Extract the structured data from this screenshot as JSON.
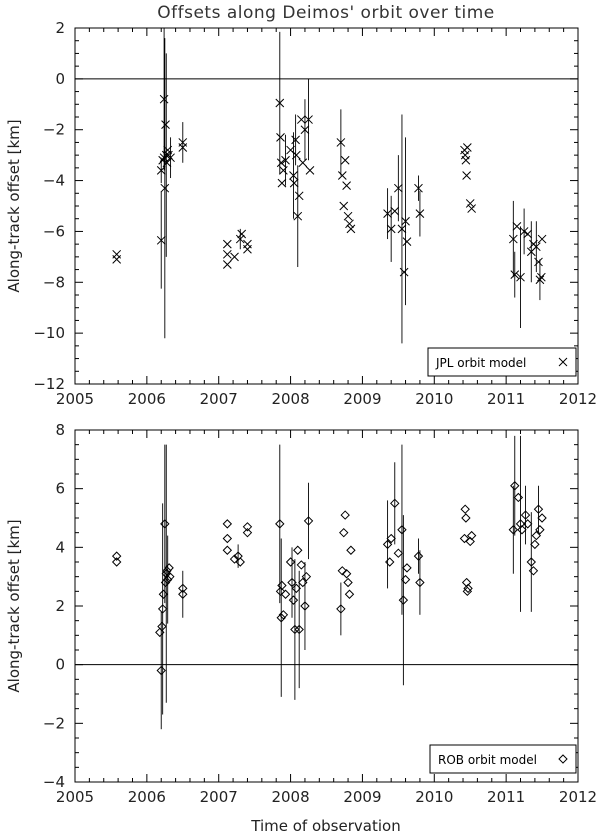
{
  "figure": {
    "title": "Offsets along Deimos' orbit over time",
    "xlabel": "Time of observation"
  },
  "chart_data": [
    {
      "type": "scatter",
      "panel": "top",
      "title": "Offsets along Deimos' orbit over time",
      "xlabel": "",
      "ylabel": "Along-track offset [km]",
      "xlim": [
        2005,
        2012
      ],
      "ylim": [
        -12,
        2
      ],
      "xticks": [
        2005,
        2006,
        2007,
        2008,
        2009,
        2010,
        2011,
        2012
      ],
      "yticks": [
        -12,
        -10,
        -8,
        -6,
        -4,
        -2,
        0,
        2
      ],
      "marker": "x",
      "grid": false,
      "zero_line": true,
      "legend": {
        "label": "JPL orbit model",
        "symbol": "x",
        "position": "bottom-right"
      },
      "points": [
        {
          "x": 2005.58,
          "y": -6.9
        },
        {
          "x": 2005.58,
          "y": -7.1
        },
        {
          "x": 2006.2,
          "y": -6.35,
          "err": 1.9
        },
        {
          "x": 2006.2,
          "y": -3.6,
          "err": 0.5
        },
        {
          "x": 2006.22,
          "y": -3.2
        },
        {
          "x": 2006.24,
          "y": -0.8,
          "err": 2.8
        },
        {
          "x": 2006.24,
          "y": -3.1
        },
        {
          "x": 2006.25,
          "y": -4.3,
          "err": 5.9
        },
        {
          "x": 2006.26,
          "y": -1.8
        },
        {
          "x": 2006.27,
          "y": -3.0,
          "err": 4.0
        },
        {
          "x": 2006.28,
          "y": -3.3
        },
        {
          "x": 2006.29,
          "y": -2.8
        },
        {
          "x": 2006.3,
          "y": -3.0
        },
        {
          "x": 2006.33,
          "y": -3.1,
          "err": 0.8
        },
        {
          "x": 2006.5,
          "y": -2.5,
          "err": 0.8
        },
        {
          "x": 2006.5,
          "y": -2.7
        },
        {
          "x": 2007.12,
          "y": -7.3
        },
        {
          "x": 2007.12,
          "y": -6.9
        },
        {
          "x": 2007.12,
          "y": -6.5
        },
        {
          "x": 2007.22,
          "y": -7.0
        },
        {
          "x": 2007.3,
          "y": -6.3,
          "err": 0.4
        },
        {
          "x": 2007.32,
          "y": -6.1
        },
        {
          "x": 2007.4,
          "y": -6.7
        },
        {
          "x": 2007.4,
          "y": -6.5
        },
        {
          "x": 2007.85,
          "y": -0.95,
          "err": 2.8
        },
        {
          "x": 2007.86,
          "y": -2.3
        },
        {
          "x": 2007.87,
          "y": -3.3
        },
        {
          "x": 2007.88,
          "y": -4.1
        },
        {
          "x": 2007.9,
          "y": -3.6
        },
        {
          "x": 2007.93,
          "y": -3.2,
          "err": 1.0
        },
        {
          "x": 2008.0,
          "y": -2.8
        },
        {
          "x": 2008.04,
          "y": -3.8,
          "err": 1.7
        },
        {
          "x": 2008.05,
          "y": -4.1
        },
        {
          "x": 2008.07,
          "y": -2.4,
          "err": 1.0
        },
        {
          "x": 2008.08,
          "y": -3.0
        },
        {
          "x": 2008.1,
          "y": -5.4,
          "err": 2.0
        },
        {
          "x": 2008.12,
          "y": -4.6
        },
        {
          "x": 2008.15,
          "y": -1.6
        },
        {
          "x": 2008.17,
          "y": -3.3
        },
        {
          "x": 2008.2,
          "y": -2.0,
          "err": 1.2
        },
        {
          "x": 2008.25,
          "y": -1.6,
          "err": 1.6
        },
        {
          "x": 2008.27,
          "y": -3.6
        },
        {
          "x": 2008.7,
          "y": -2.5,
          "err": 1.3
        },
        {
          "x": 2008.72,
          "y": -3.8
        },
        {
          "x": 2008.74,
          "y": -5.0
        },
        {
          "x": 2008.76,
          "y": -3.2
        },
        {
          "x": 2008.78,
          "y": -4.2
        },
        {
          "x": 2008.8,
          "y": -5.4
        },
        {
          "x": 2008.82,
          "y": -5.7
        },
        {
          "x": 2008.84,
          "y": -5.9
        },
        {
          "x": 2009.35,
          "y": -5.3,
          "err": 1.0
        },
        {
          "x": 2009.4,
          "y": -5.9,
          "err": 1.3
        },
        {
          "x": 2009.45,
          "y": -5.2
        },
        {
          "x": 2009.5,
          "y": -4.3,
          "err": 1.3
        },
        {
          "x": 2009.55,
          "y": -5.9,
          "err": 4.5
        },
        {
          "x": 2009.58,
          "y": -7.6
        },
        {
          "x": 2009.6,
          "y": -5.6,
          "err": 3.3
        },
        {
          "x": 2009.62,
          "y": -6.4
        },
        {
          "x": 2009.78,
          "y": -4.3,
          "err": 0.5
        },
        {
          "x": 2009.8,
          "y": -5.3,
          "err": 0.9
        },
        {
          "x": 2010.42,
          "y": -2.8
        },
        {
          "x": 2010.43,
          "y": -3.0
        },
        {
          "x": 2010.44,
          "y": -3.2
        },
        {
          "x": 2010.45,
          "y": -3.8
        },
        {
          "x": 2010.46,
          "y": -2.7
        },
        {
          "x": 2010.5,
          "y": -4.9
        },
        {
          "x": 2010.52,
          "y": -5.1
        },
        {
          "x": 2011.1,
          "y": -6.3,
          "err": 1.5
        },
        {
          "x": 2011.12,
          "y": -7.7,
          "err": 0.9
        },
        {
          "x": 2011.15,
          "y": -5.8
        },
        {
          "x": 2011.2,
          "y": -7.8,
          "err": 2.0
        },
        {
          "x": 2011.25,
          "y": -6.0,
          "err": 0.9
        },
        {
          "x": 2011.3,
          "y": -6.1
        },
        {
          "x": 2011.35,
          "y": -6.8,
          "err": 1.2
        },
        {
          "x": 2011.38,
          "y": -6.5
        },
        {
          "x": 2011.42,
          "y": -6.6,
          "err": 1.0
        },
        {
          "x": 2011.45,
          "y": -7.2
        },
        {
          "x": 2011.47,
          "y": -7.9,
          "err": 0.8
        },
        {
          "x": 2011.49,
          "y": -7.8
        },
        {
          "x": 2011.5,
          "y": -6.3
        }
      ]
    },
    {
      "type": "scatter",
      "panel": "bottom",
      "title": "",
      "xlabel": "Time of observation",
      "ylabel": "Along-track offset [km]",
      "xlim": [
        2005,
        2012
      ],
      "ylim": [
        -4,
        8
      ],
      "xticks": [
        2005,
        2006,
        2007,
        2008,
        2009,
        2010,
        2011,
        2012
      ],
      "yticks": [
        -4,
        -2,
        0,
        2,
        4,
        6,
        8
      ],
      "marker": "diamond",
      "grid": false,
      "zero_line": true,
      "legend": {
        "label": "ROB orbit model",
        "symbol": "diamond",
        "position": "bottom-right"
      },
      "points": [
        {
          "x": 2005.58,
          "y": 3.7
        },
        {
          "x": 2005.58,
          "y": 3.5
        },
        {
          "x": 2006.18,
          "y": 1.1
        },
        {
          "x": 2006.2,
          "y": -0.2,
          "err": 2.0
        },
        {
          "x": 2006.21,
          "y": 1.3
        },
        {
          "x": 2006.22,
          "y": 1.9,
          "err": 3.6
        },
        {
          "x": 2006.23,
          "y": 2.4
        },
        {
          "x": 2006.25,
          "y": 4.8,
          "err": 2.7
        },
        {
          "x": 2006.26,
          "y": 2.8
        },
        {
          "x": 2006.27,
          "y": 3.1,
          "err": 4.4
        },
        {
          "x": 2006.28,
          "y": 3.2
        },
        {
          "x": 2006.29,
          "y": 2.9,
          "err": 1.5
        },
        {
          "x": 2006.31,
          "y": 3.3
        },
        {
          "x": 2006.32,
          "y": 3.0
        },
        {
          "x": 2006.5,
          "y": 2.4,
          "err": 0.8
        },
        {
          "x": 2006.5,
          "y": 2.6
        },
        {
          "x": 2007.12,
          "y": 4.8
        },
        {
          "x": 2007.12,
          "y": 4.3
        },
        {
          "x": 2007.12,
          "y": 3.9
        },
        {
          "x": 2007.22,
          "y": 3.6
        },
        {
          "x": 2007.27,
          "y": 3.7,
          "err": 0.4
        },
        {
          "x": 2007.3,
          "y": 3.5
        },
        {
          "x": 2007.4,
          "y": 4.5
        },
        {
          "x": 2007.4,
          "y": 4.7
        },
        {
          "x": 2007.85,
          "y": 4.8,
          "err": 2.7
        },
        {
          "x": 2007.86,
          "y": 2.5
        },
        {
          "x": 2007.87,
          "y": 1.6,
          "err": 2.7
        },
        {
          "x": 2007.88,
          "y": 2.7
        },
        {
          "x": 2007.9,
          "y": 1.7
        },
        {
          "x": 2007.93,
          "y": 2.4
        },
        {
          "x": 2008.0,
          "y": 3.5
        },
        {
          "x": 2008.02,
          "y": 2.8,
          "err": 1.2
        },
        {
          "x": 2008.04,
          "y": 2.2
        },
        {
          "x": 2008.06,
          "y": 1.2,
          "err": 2.4
        },
        {
          "x": 2008.08,
          "y": 2.6
        },
        {
          "x": 2008.1,
          "y": 3.9
        },
        {
          "x": 2008.12,
          "y": 1.2,
          "err": 2.0
        },
        {
          "x": 2008.15,
          "y": 3.4
        },
        {
          "x": 2008.17,
          "y": 2.8
        },
        {
          "x": 2008.2,
          "y": 2.0,
          "err": 1.5
        },
        {
          "x": 2008.22,
          "y": 3.0
        },
        {
          "x": 2008.25,
          "y": 4.9,
          "err": 1.3
        },
        {
          "x": 2008.7,
          "y": 1.9,
          "err": 0.9
        },
        {
          "x": 2008.72,
          "y": 3.2
        },
        {
          "x": 2008.74,
          "y": 4.5
        },
        {
          "x": 2008.76,
          "y": 5.1
        },
        {
          "x": 2008.78,
          "y": 3.1
        },
        {
          "x": 2008.8,
          "y": 2.8
        },
        {
          "x": 2008.82,
          "y": 2.4
        },
        {
          "x": 2008.84,
          "y": 3.9
        },
        {
          "x": 2009.35,
          "y": 4.1,
          "err": 1.5
        },
        {
          "x": 2009.38,
          "y": 3.5
        },
        {
          "x": 2009.4,
          "y": 4.3
        },
        {
          "x": 2009.45,
          "y": 5.5,
          "err": 1.4
        },
        {
          "x": 2009.5,
          "y": 3.8
        },
        {
          "x": 2009.55,
          "y": 4.6,
          "err": 2.9
        },
        {
          "x": 2009.57,
          "y": 2.2,
          "err": 2.9
        },
        {
          "x": 2009.6,
          "y": 2.9
        },
        {
          "x": 2009.62,
          "y": 3.3
        },
        {
          "x": 2009.78,
          "y": 3.7,
          "err": 0.6
        },
        {
          "x": 2009.8,
          "y": 2.8,
          "err": 1.1
        },
        {
          "x": 2010.42,
          "y": 4.3
        },
        {
          "x": 2010.43,
          "y": 5.3
        },
        {
          "x": 2010.44,
          "y": 5.0
        },
        {
          "x": 2010.45,
          "y": 2.8
        },
        {
          "x": 2010.46,
          "y": 2.5
        },
        {
          "x": 2010.47,
          "y": 2.6
        },
        {
          "x": 2010.5,
          "y": 4.2
        },
        {
          "x": 2010.52,
          "y": 4.4
        },
        {
          "x": 2011.1,
          "y": 4.6,
          "err": 1.5
        },
        {
          "x": 2011.12,
          "y": 6.1,
          "err": 1.7
        },
        {
          "x": 2011.17,
          "y": 5.7
        },
        {
          "x": 2011.2,
          "y": 4.8,
          "err": 3.0
        },
        {
          "x": 2011.22,
          "y": 4.6
        },
        {
          "x": 2011.27,
          "y": 5.1,
          "err": 1.0
        },
        {
          "x": 2011.3,
          "y": 4.8
        },
        {
          "x": 2011.35,
          "y": 3.5,
          "err": 1.7
        },
        {
          "x": 2011.38,
          "y": 3.2
        },
        {
          "x": 2011.4,
          "y": 4.1
        },
        {
          "x": 2011.42,
          "y": 4.4
        },
        {
          "x": 2011.45,
          "y": 5.3,
          "err": 0.8
        },
        {
          "x": 2011.47,
          "y": 4.6
        },
        {
          "x": 2011.5,
          "y": 5.0
        }
      ]
    }
  ]
}
